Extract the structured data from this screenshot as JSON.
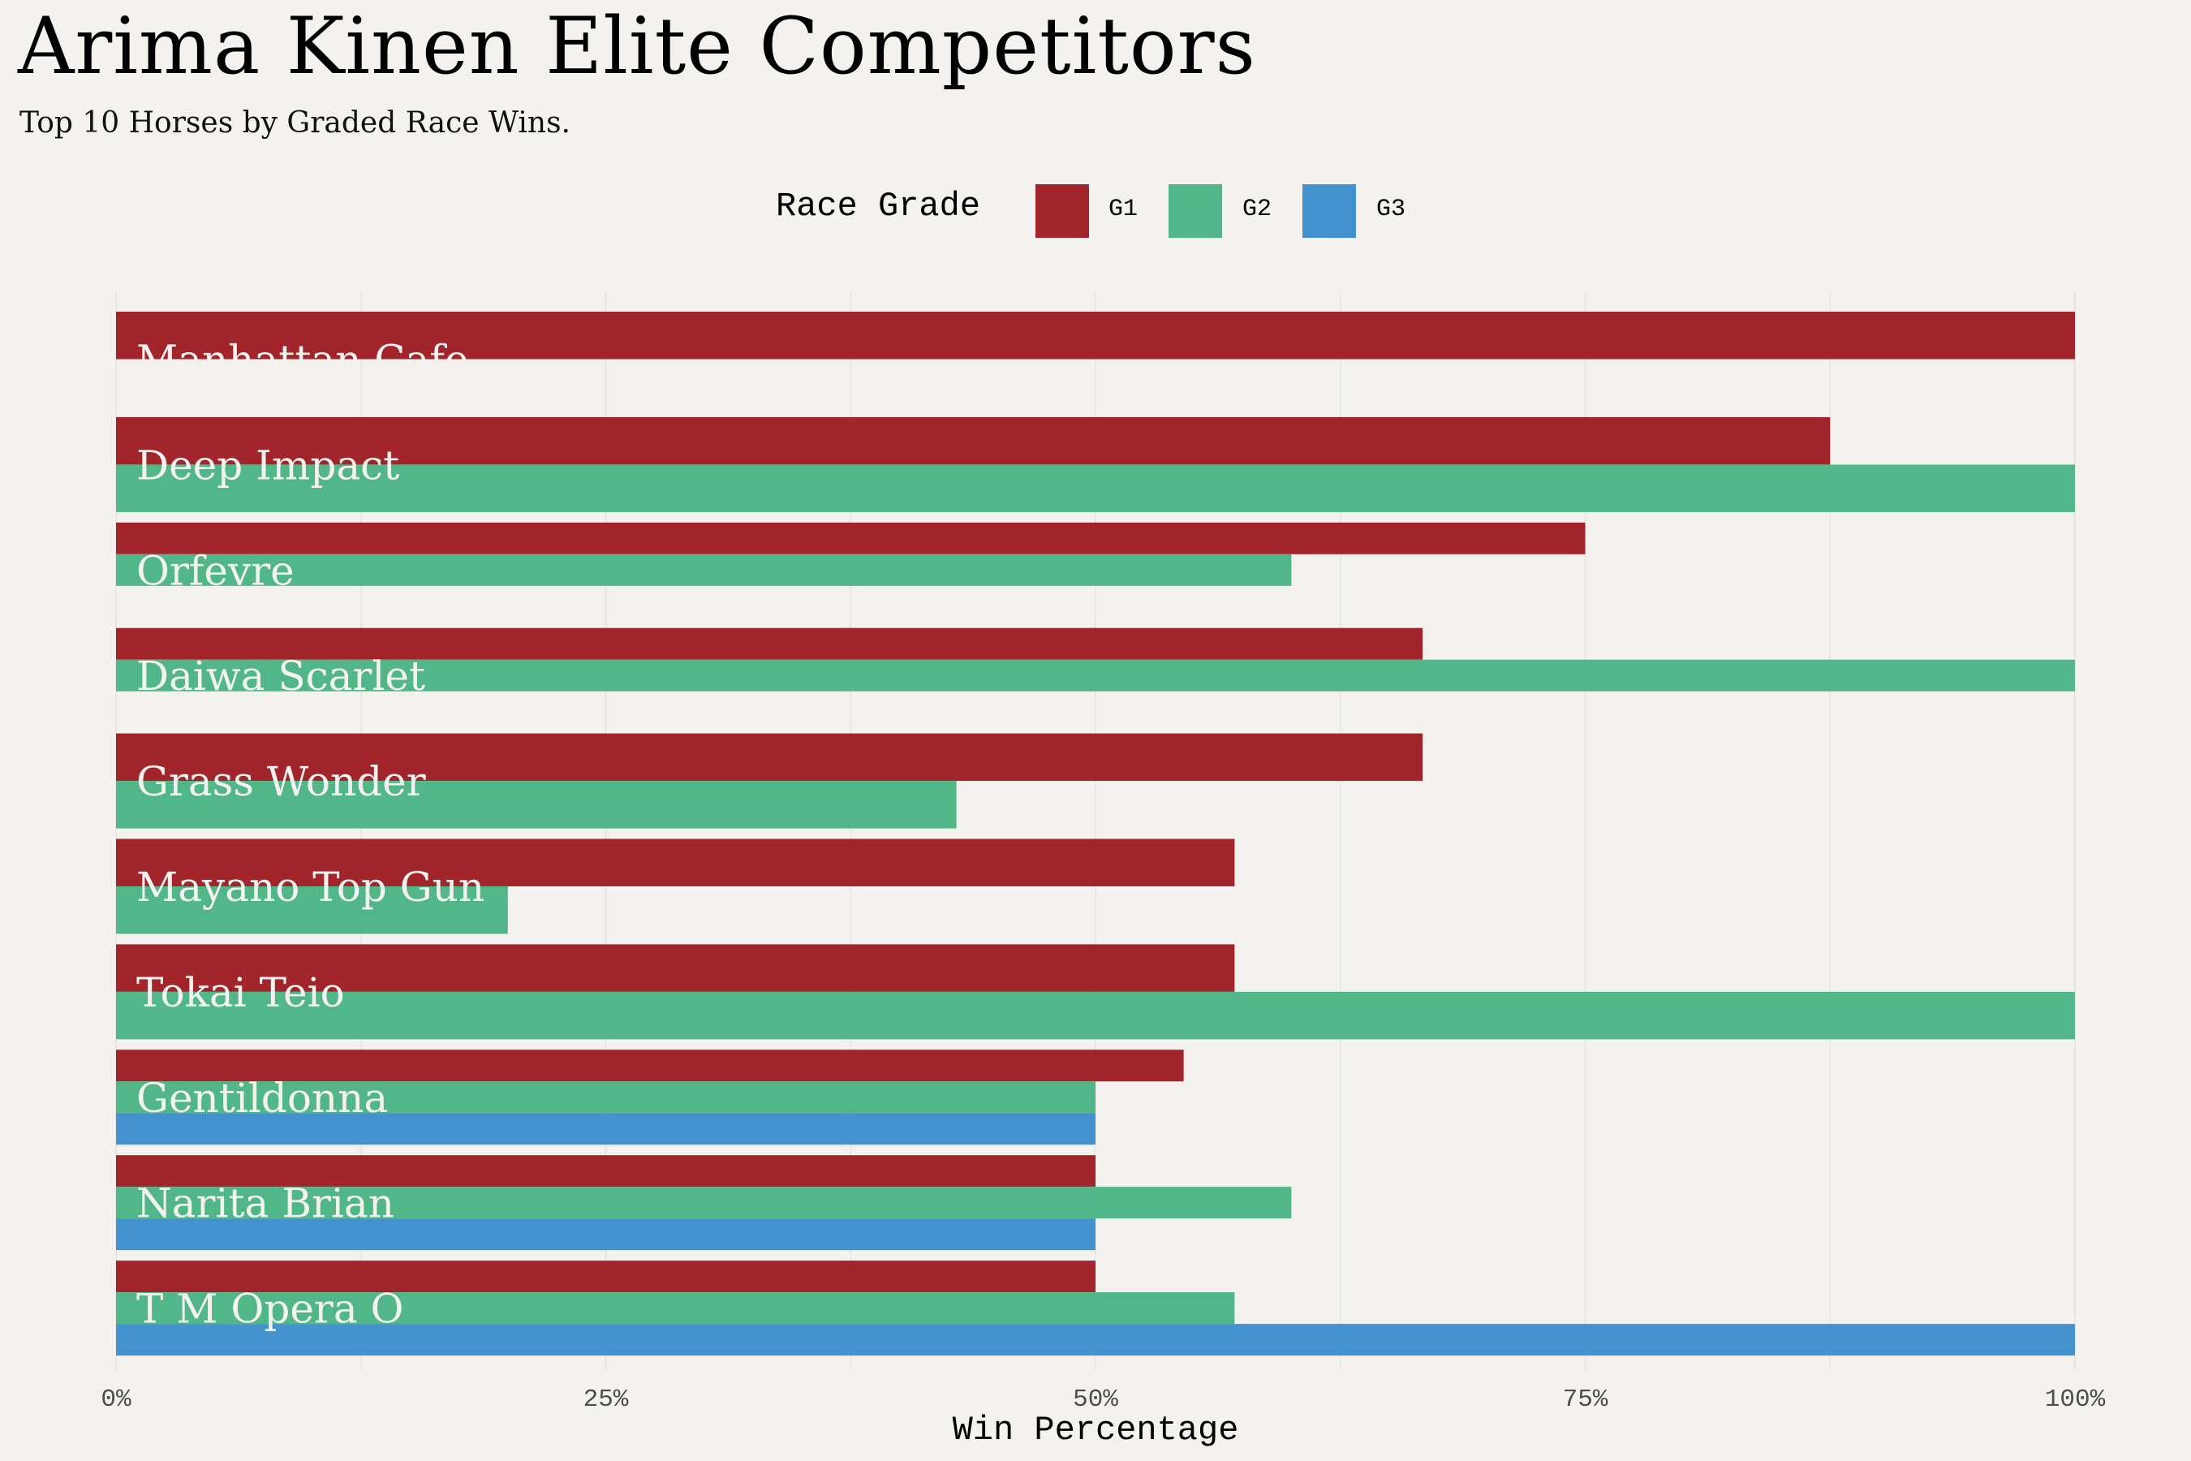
{
  "header": {
    "title": "Arima Kinen Elite Competitors",
    "subtitle": "Top 10 Horses by Graded Race Wins."
  },
  "legend": {
    "title": "Race Grade",
    "items": [
      {
        "label": "G1",
        "color": "#a3252c"
      },
      {
        "label": "G2",
        "color": "#52b788"
      },
      {
        "label": "G3",
        "color": "#4392ce"
      }
    ]
  },
  "colors": {
    "background": "#f3f2ee",
    "grid": "#e8e7e3",
    "label_text": "#f3f2ee",
    "tick_text": "#4d4d4d"
  },
  "chart_data": {
    "type": "bar",
    "orientation": "horizontal",
    "title": "Arima Kinen Elite Competitors",
    "subtitle": "Top 10 Horses by Graded Race Wins.",
    "xlabel": "Win Percentage",
    "ylabel": "",
    "xlim": [
      0,
      100
    ],
    "x_ticks": [
      0,
      25,
      50,
      75,
      100
    ],
    "x_tick_labels": [
      "0%",
      "25%",
      "50%",
      "75%",
      "100%"
    ],
    "grid": true,
    "legend_position": "top",
    "categories": [
      "Manhattan Cafe",
      "Deep Impact",
      "Orfevre",
      "Daiwa Scarlet",
      "Grass Wonder",
      "Mayano Top Gun",
      "Tokai Teio",
      "Gentildonna",
      "Narita Brian",
      "T M Opera O"
    ],
    "grades_present": [
      2,
      2,
      3,
      3,
      2,
      2,
      2,
      3,
      3,
      3
    ],
    "series": [
      {
        "name": "G1",
        "values": [
          100,
          87.5,
          75,
          66.7,
          66.7,
          57.1,
          57.1,
          54.5,
          50,
          50
        ]
      },
      {
        "name": "G2",
        "values": [
          0,
          100,
          60,
          100,
          42.9,
          20,
          100,
          50,
          60,
          57.1
        ]
      },
      {
        "name": "G3",
        "values": [
          null,
          null,
          0,
          0,
          null,
          null,
          null,
          50,
          50,
          100
        ]
      }
    ]
  }
}
